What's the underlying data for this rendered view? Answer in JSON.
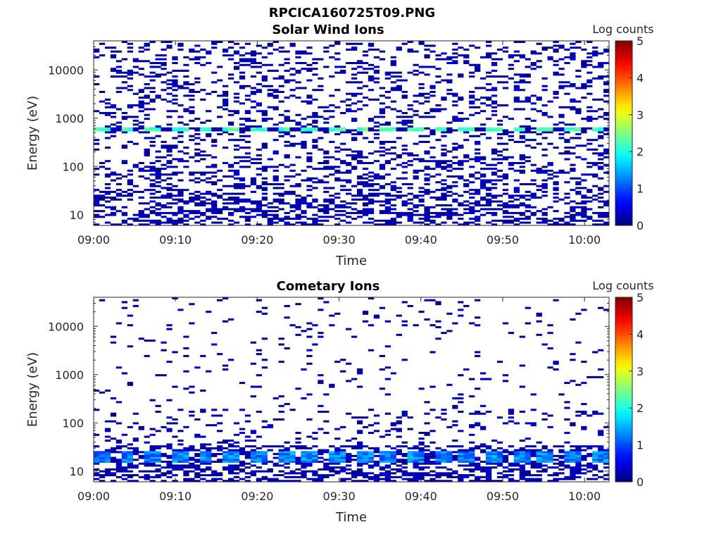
{
  "figure_title": "RPCICA160725T09.PNG",
  "chart_data": [
    {
      "type": "heatmap",
      "title": "Solar Wind Ions",
      "xlabel": "Time",
      "ylabel": "Energy (eV)",
      "xlim": [
        "09:00",
        "10:03"
      ],
      "ylim": [
        6,
        40000
      ],
      "yscale": "log",
      "xticks": [
        "09:00",
        "09:10",
        "09:20",
        "09:30",
        "09:40",
        "09:50",
        "10:00"
      ],
      "yticks": [
        {
          "value": 10,
          "label": "10"
        },
        {
          "value": 100,
          "label": "100"
        },
        {
          "value": 1000,
          "label": "1000"
        },
        {
          "value": 10000,
          "label": "10000"
        }
      ],
      "colorbar": {
        "label": "Log counts",
        "min": 0,
        "max": 5,
        "ticks": [
          "0",
          "1",
          "2",
          "3",
          "4",
          "5"
        ],
        "colormap": "jet"
      },
      "peak_band": {
        "energy_eV": 600,
        "log_counts": 2.5,
        "period_min": 3.2
      },
      "grid": false
    },
    {
      "type": "heatmap",
      "title": "Cometary Ions",
      "xlabel": "Time",
      "ylabel": "Energy (eV)",
      "xlim": [
        "09:00",
        "10:03"
      ],
      "ylim": [
        6,
        40000
      ],
      "yscale": "log",
      "xticks": [
        "09:00",
        "09:10",
        "09:20",
        "09:30",
        "09:40",
        "09:50",
        "10:00"
      ],
      "yticks": [
        {
          "value": 10,
          "label": "10"
        },
        {
          "value": 100,
          "label": "100"
        },
        {
          "value": 1000,
          "label": "1000"
        },
        {
          "value": 10000,
          "label": "10000"
        }
      ],
      "colorbar": {
        "label": "Log counts",
        "min": 0,
        "max": 5,
        "ticks": [
          "0",
          "1",
          "2",
          "3",
          "4",
          "5"
        ],
        "colormap": "jet"
      },
      "peak_band": {
        "energy_eV": 20,
        "log_counts": 1.6,
        "period_min": 3.2
      },
      "grid": false
    }
  ]
}
